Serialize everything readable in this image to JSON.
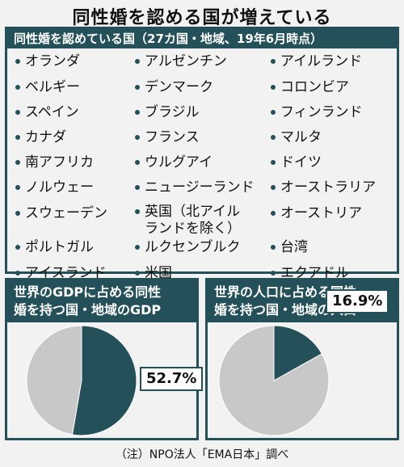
{
  "title": "同性婚を認める国が増えている",
  "list": {
    "header": "同性婚を認めている国（27カ国・地域、19年6月時点）",
    "columns": [
      [
        "オランダ",
        "ベルギー",
        "スペイン",
        "カナダ",
        "南アフリカ",
        "ノルウェー",
        "スウェーデン",
        "ポルトガル",
        "アイスランド"
      ],
      [
        "アルゼンチン",
        "デンマーク",
        "ブラジル",
        "フランス",
        "ウルグアイ",
        "ニュージーランド",
        "英国（北アイル|ランドを除く）",
        "ルクセンブルク",
        "米国"
      ],
      [
        "アイルランド",
        "コロンビア",
        "フィンランド",
        "マルタ",
        "ドイツ",
        "オーストラリア",
        "オーストリア",
        "台湾",
        "エクアドル"
      ]
    ]
  },
  "charts": [
    {
      "title_line1": "世界のGDPに占める同性",
      "title_line2": "婚を持つ国・地域のGDP",
      "value_label": "52.7%",
      "value": 52.7
    },
    {
      "title_line1": "世界の人口に占める同性",
      "title_line2": "婚を持つ国・地域の人口",
      "value_label": "16.9%",
      "value": 16.9
    }
  ],
  "colors": {
    "accent": "#24505a",
    "rest": "#c8c8c8"
  },
  "note": "（注）NPO法人「EMA日本」調べ"
}
